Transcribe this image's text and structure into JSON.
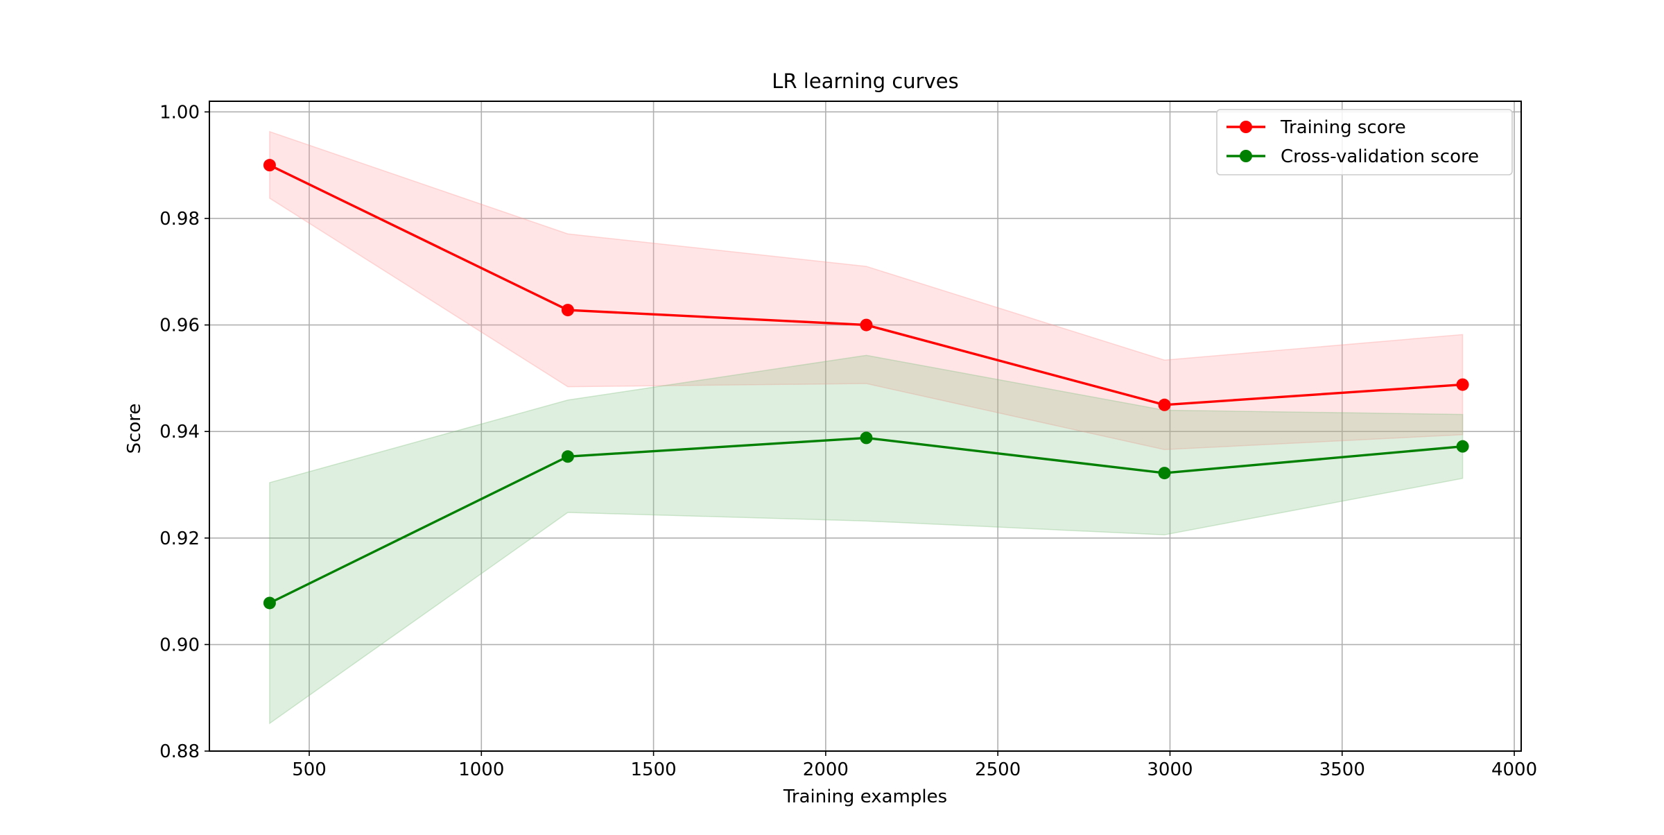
{
  "chart_data": {
    "type": "line",
    "title": "LR learning curves",
    "xlabel": "Training examples",
    "ylabel": "Score",
    "xlim": [
      210,
      4020
    ],
    "ylim": [
      0.88,
      1.002
    ],
    "xticks": [
      500,
      1000,
      1500,
      2000,
      2500,
      3000,
      3500,
      4000
    ],
    "xtick_labels": [
      "500",
      "1000",
      "1500",
      "2000",
      "2500",
      "3000",
      "3500",
      "4000"
    ],
    "yticks": [
      0.88,
      0.9,
      0.92,
      0.94,
      0.96,
      0.98,
      1.0
    ],
    "ytick_labels": [
      "0.88",
      "0.90",
      "0.92",
      "0.94",
      "0.96",
      "0.98",
      "1.00"
    ],
    "grid": true,
    "legend_position": "top-right",
    "x": [
      385,
      1251,
      2118,
      2984,
      3850
    ],
    "series": [
      {
        "name": "Training score",
        "color": "#ff0000",
        "band_color": "#ff9999",
        "values": [
          0.99,
          0.9628,
          0.96,
          0.945,
          0.9488
        ],
        "lower": [
          0.9838,
          0.9484,
          0.949,
          0.9366,
          0.9394
        ],
        "upper": [
          0.9963,
          0.9771,
          0.971,
          0.9534,
          0.9582
        ]
      },
      {
        "name": "Cross-validation score",
        "color": "#008000",
        "band_color": "#80c080",
        "values": [
          0.9078,
          0.9353,
          0.9388,
          0.9322,
          0.9372
        ],
        "lower": [
          0.8852,
          0.9248,
          0.9232,
          0.9206,
          0.9312
        ],
        "upper": [
          0.9304,
          0.9459,
          0.9543,
          0.944,
          0.9432
        ]
      }
    ]
  }
}
